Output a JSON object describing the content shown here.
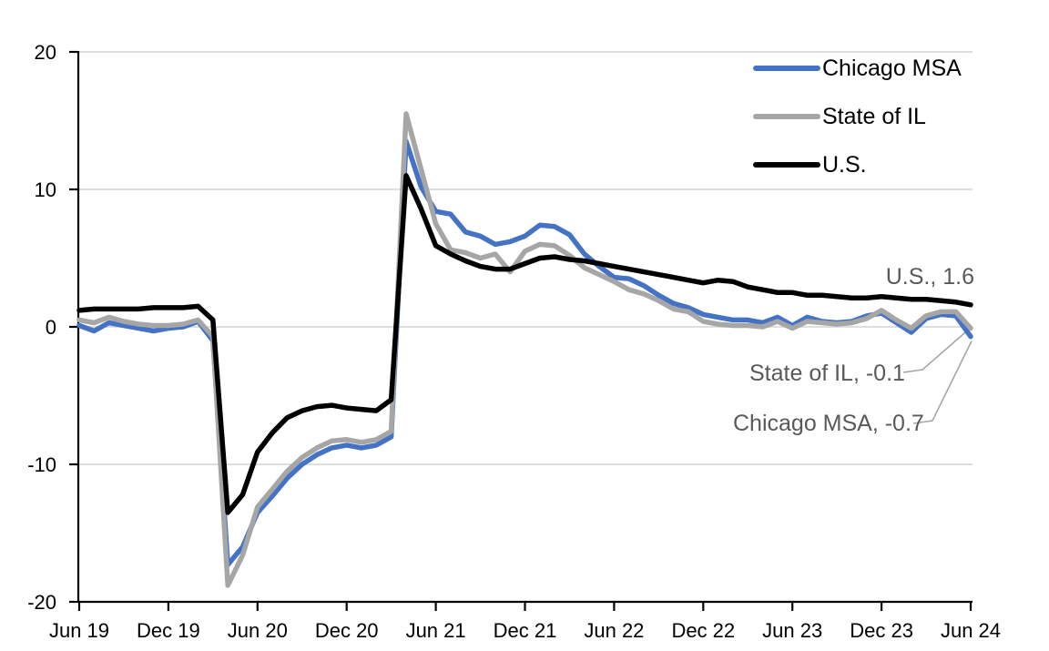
{
  "figure": {
    "background": "#FFFFFF",
    "description": "Year-over-year percent change line chart, Jun 2019 - Jun 2024"
  },
  "annotations": [
    {
      "id": "us",
      "text": "U.S., 1.6",
      "series": "U.S.",
      "value": 1.6
    },
    {
      "id": "il",
      "text": "State of IL, -0.1",
      "series": "State of IL",
      "value": -0.1
    },
    {
      "id": "chicago",
      "text": "Chicago MSA, -0.7",
      "series": "Chicago MSA",
      "value": -0.7
    }
  ],
  "chart_data": {
    "type": "line",
    "title": "",
    "xlabel": "",
    "ylabel": "",
    "ylim": [
      -20,
      20
    ],
    "y_ticks": [
      -20,
      -10,
      0,
      10,
      20
    ],
    "y_tick_labels": [
      "-20",
      "-10",
      "0",
      "10",
      "20"
    ],
    "x_tick_labels": [
      "Jun 19",
      "Dec 19",
      "Jun 20",
      "Dec 20",
      "Jun 21",
      "Dec 21",
      "Jun 22",
      "Dec 22",
      "Jun 23",
      "Dec 23",
      "Jun 24"
    ],
    "x_tick_every": 6,
    "grid": "horizontal",
    "gridline_color": "#D9D9D9",
    "axis_color": "#000000",
    "leader_line_color": "#A6A6A6",
    "legend_position": "top-right",
    "months": [
      "2019-06",
      "2019-07",
      "2019-08",
      "2019-09",
      "2019-10",
      "2019-11",
      "2019-12",
      "2020-01",
      "2020-02",
      "2020-03",
      "2020-04",
      "2020-05",
      "2020-06",
      "2020-07",
      "2020-08",
      "2020-09",
      "2020-10",
      "2020-11",
      "2020-12",
      "2021-01",
      "2021-02",
      "2021-03",
      "2021-04",
      "2021-05",
      "2021-06",
      "2021-07",
      "2021-08",
      "2021-09",
      "2021-10",
      "2021-11",
      "2021-12",
      "2022-01",
      "2022-02",
      "2022-03",
      "2022-04",
      "2022-05",
      "2022-06",
      "2022-07",
      "2022-08",
      "2022-09",
      "2022-10",
      "2022-11",
      "2022-12",
      "2023-01",
      "2023-02",
      "2023-03",
      "2023-04",
      "2023-05",
      "2023-06",
      "2023-07",
      "2023-08",
      "2023-09",
      "2023-10",
      "2023-11",
      "2023-12",
      "2024-01",
      "2024-02",
      "2024-03",
      "2024-04",
      "2024-05",
      "2024-06"
    ],
    "series": [
      {
        "name": "Chicago MSA",
        "color": "#4472C4",
        "values": [
          0.1,
          -0.3,
          0.3,
          0.1,
          -0.1,
          -0.3,
          -0.1,
          0.0,
          0.4,
          -1.0,
          -17.3,
          -16.0,
          -13.5,
          -12.3,
          -11.0,
          -10.0,
          -9.3,
          -8.8,
          -8.6,
          -8.8,
          -8.6,
          -8.0,
          13.5,
          10.2,
          8.4,
          8.2,
          6.9,
          6.6,
          6.0,
          6.2,
          6.6,
          7.4,
          7.3,
          6.7,
          5.3,
          4.4,
          3.6,
          3.5,
          3.0,
          2.3,
          1.7,
          1.4,
          0.9,
          0.7,
          0.5,
          0.5,
          0.3,
          0.7,
          0.1,
          0.7,
          0.4,
          0.3,
          0.4,
          0.8,
          1.0,
          0.3,
          -0.4,
          0.6,
          0.9,
          0.8,
          -0.7
        ]
      },
      {
        "name": "State of IL",
        "color": "#A6A6A6",
        "values": [
          0.5,
          0.3,
          0.7,
          0.4,
          0.2,
          0.1,
          0.1,
          0.2,
          0.5,
          -0.7,
          -18.8,
          -16.6,
          -13.1,
          -11.8,
          -10.5,
          -9.5,
          -8.8,
          -8.3,
          -8.2,
          -8.4,
          -8.2,
          -7.6,
          15.5,
          11.5,
          7.5,
          5.6,
          5.4,
          5.0,
          5.3,
          4.0,
          5.5,
          6.0,
          5.9,
          5.2,
          4.3,
          3.8,
          3.3,
          2.7,
          2.4,
          1.9,
          1.3,
          1.1,
          0.4,
          0.2,
          0.1,
          0.1,
          0.0,
          0.4,
          -0.1,
          0.4,
          0.3,
          0.2,
          0.3,
          0.6,
          1.2,
          0.5,
          -0.1,
          0.8,
          1.1,
          1.1,
          -0.1
        ]
      },
      {
        "name": "U.S.",
        "color": "#000000",
        "values": [
          1.2,
          1.3,
          1.3,
          1.3,
          1.3,
          1.4,
          1.4,
          1.4,
          1.5,
          0.5,
          -13.5,
          -12.2,
          -9.1,
          -7.7,
          -6.6,
          -6.1,
          -5.8,
          -5.7,
          -5.9,
          -6.0,
          -6.1,
          -5.3,
          11.0,
          8.6,
          5.9,
          5.3,
          4.8,
          4.4,
          4.2,
          4.2,
          4.6,
          5.0,
          5.1,
          4.9,
          4.8,
          4.6,
          4.4,
          4.2,
          4.0,
          3.8,
          3.6,
          3.4,
          3.2,
          3.4,
          3.3,
          2.9,
          2.7,
          2.5,
          2.5,
          2.3,
          2.3,
          2.2,
          2.1,
          2.1,
          2.2,
          2.1,
          2.0,
          2.0,
          1.9,
          1.8,
          1.6
        ]
      }
    ]
  }
}
